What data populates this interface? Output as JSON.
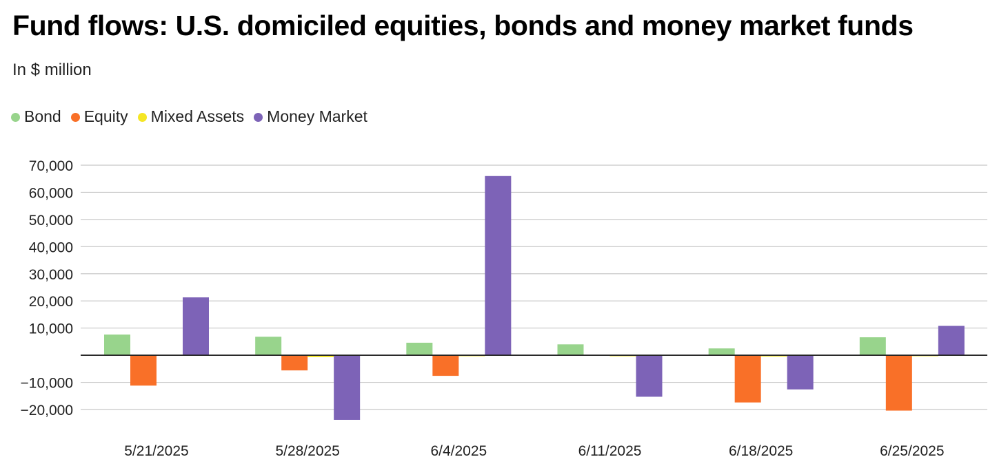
{
  "chart_data": {
    "type": "bar",
    "title": "Fund flows: U.S. domiciled equities, bonds and money market funds",
    "subtitle": "In $ million",
    "categories": [
      "5/21/2025",
      "5/28/2025",
      "6/4/2025",
      "6/11/2025",
      "6/18/2025",
      "6/25/2025"
    ],
    "series": [
      {
        "name": "Bond",
        "color": "#98d48c",
        "values": [
          7600,
          6800,
          4600,
          4000,
          2500,
          6600
        ]
      },
      {
        "name": "Equity",
        "color": "#f97028",
        "values": [
          -11200,
          -5600,
          -7600,
          0,
          -17400,
          -20400
        ]
      },
      {
        "name": "Mixed Assets",
        "color": "#f5e625",
        "values": [
          0,
          -700,
          -300,
          -400,
          -500,
          -300
        ]
      },
      {
        "name": "Money Market",
        "color": "#7d63b7",
        "values": [
          21300,
          -23800,
          66000,
          -15300,
          -12600,
          10800
        ]
      }
    ],
    "ylim": [
      -20000,
      70000
    ],
    "yticks": [
      "70,000",
      "60,000",
      "50,000",
      "40,000",
      "30,000",
      "20,000",
      "10,000",
      "−10,000",
      "−20,000"
    ],
    "ytick_values": [
      70000,
      60000,
      50000,
      40000,
      30000,
      20000,
      10000,
      -10000,
      -20000
    ],
    "grid": true,
    "legend_position": "top-left"
  }
}
